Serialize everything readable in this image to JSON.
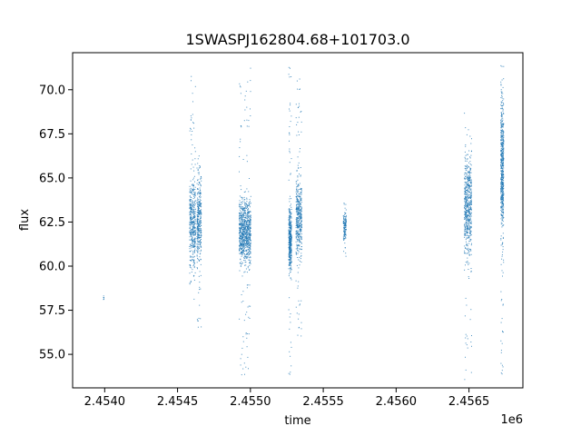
{
  "chart_data": {
    "type": "scatter",
    "title": "1SWASPJ162804.68+101703.0",
    "xlabel": "time",
    "ylabel": "flux",
    "x_offset_label": "1e6",
    "xlim": [
      2453780,
      2456870
    ],
    "ylim": [
      53.1,
      72.1
    ],
    "x_ticks": [
      2454000,
      2454500,
      2455000,
      2455500,
      2456000,
      2456500
    ],
    "x_tick_labels": [
      "2.4540",
      "2.4545",
      "2.4550",
      "2.4555",
      "2.4560",
      "2.4565"
    ],
    "y_ticks": [
      55.0,
      57.5,
      60.0,
      62.5,
      65.0,
      67.5,
      70.0
    ],
    "y_tick_labels": [
      "55.0",
      "57.5",
      "60.0",
      "62.5",
      "65.0",
      "67.5",
      "70.0"
    ],
    "grid": false,
    "marker_color": "#1f77b4",
    "series": [
      {
        "clusters": [
          {
            "x": [
              2453988,
              2453993
            ],
            "y_core": [
              58.0,
              58.3
            ],
            "y_full": [
              57.9,
              58.4
            ],
            "n": 6
          },
          {
            "x": [
              2454580,
              2454620
            ],
            "y_core": [
              59.0,
              66.0
            ],
            "y_full": [
              58.0,
              71.2
            ],
            "n": 450
          },
          {
            "x": [
              2454630,
              2454660
            ],
            "y_core": [
              59.0,
              66.0
            ],
            "y_full": [
              56.5,
              66.5
            ],
            "n": 350
          },
          {
            "x": [
              2454920,
              2455000
            ],
            "y_core": [
              59.5,
              64.5
            ],
            "y_full": [
              53.6,
              71.3
            ],
            "n": 900
          },
          {
            "x": [
              2455260,
              2455280
            ],
            "y_core": [
              59.0,
              64.0
            ],
            "y_full": [
              53.6,
              71.3
            ],
            "n": 450
          },
          {
            "x": [
              2455310,
              2455350
            ],
            "y_core": [
              59.5,
              66.0
            ],
            "y_full": [
              56.0,
              71.0
            ],
            "n": 450
          },
          {
            "x": [
              2455635,
              2455655
            ],
            "y_core": [
              61.0,
              63.5
            ],
            "y_full": [
              60.5,
              63.8
            ],
            "n": 140
          },
          {
            "x": [
              2456465,
              2456515
            ],
            "y_core": [
              59.5,
              67.5
            ],
            "y_full": [
              53.6,
              68.8
            ],
            "n": 600
          },
          {
            "x": [
              2456715,
              2456735
            ],
            "y_core": [
              60.0,
              71.2
            ],
            "y_full": [
              53.7,
              71.4
            ],
            "n": 600
          }
        ]
      }
    ]
  }
}
